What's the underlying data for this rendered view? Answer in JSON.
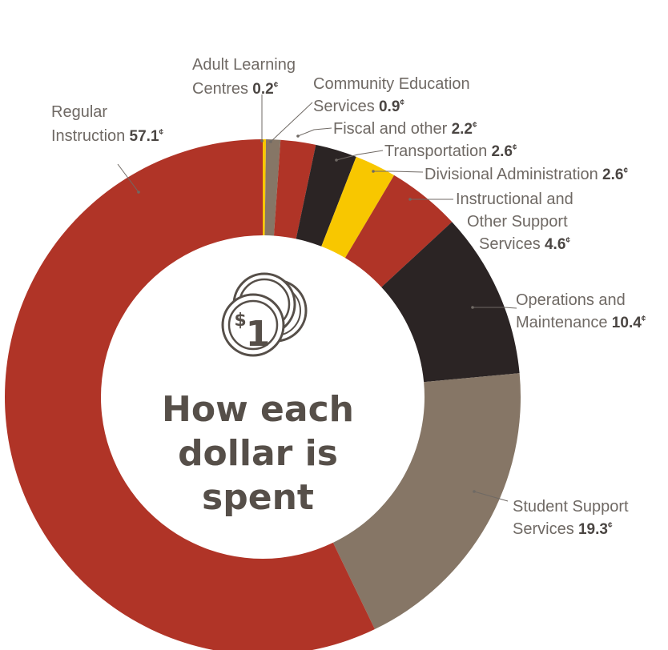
{
  "chart_data": {
    "type": "pie",
    "title": "How each dollar is spent",
    "unit": "¢",
    "center_icon": {
      "name": "coin-stack-icon",
      "dollar_sign": "$",
      "amount": "1"
    },
    "colors": {
      "red": "#b03427",
      "dark": "#2b2424",
      "yellow": "#f8c700",
      "taupe": "#867666",
      "text": "#564f49"
    },
    "slices": [
      {
        "label": [
          "Adult Learning",
          "Centres"
        ],
        "value": 0.2,
        "value_text": "0.2",
        "color": "#f8c700"
      },
      {
        "label": [
          "Community Education",
          "Services"
        ],
        "value": 0.9,
        "value_text": "0.9",
        "color": "#867666"
      },
      {
        "label": [
          "Fiscal and other"
        ],
        "value": 2.2,
        "value_text": "2.2",
        "color": "#b03427"
      },
      {
        "label": [
          "Transportation"
        ],
        "value": 2.6,
        "value_text": "2.6",
        "color": "#2b2424"
      },
      {
        "label": [
          "Divisional Administration"
        ],
        "value": 2.6,
        "value_text": "2.6",
        "color": "#f8c700"
      },
      {
        "label": [
          "Instructional and",
          "Other Support",
          "Services"
        ],
        "value": 4.6,
        "value_text": "4.6",
        "color": "#b03427"
      },
      {
        "label": [
          "Operations and",
          "Maintenance"
        ],
        "value": 10.4,
        "value_text": "10.4",
        "color": "#2b2424"
      },
      {
        "label": [
          "Student Support",
          "Services"
        ],
        "value": 19.3,
        "value_text": "19.3",
        "color": "#867666"
      },
      {
        "label": [
          "Regular",
          "Instruction"
        ],
        "value": 57.1,
        "value_text": "57.1",
        "color": "#b03427"
      }
    ]
  }
}
